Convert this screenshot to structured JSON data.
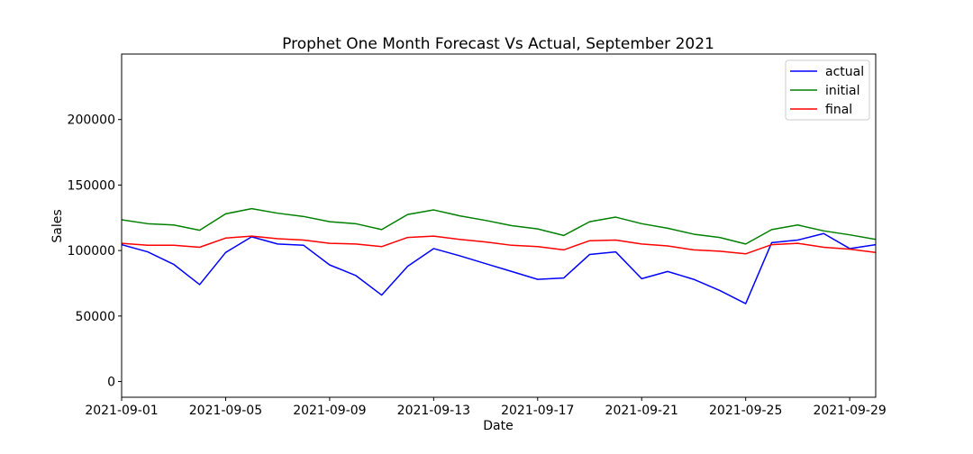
{
  "chart_data": {
    "type": "line",
    "title": "Prophet One Month Forecast Vs Actual, September 2021",
    "xlabel": "Date",
    "ylabel": "Sales",
    "x": [
      "2021-09-01",
      "2021-09-02",
      "2021-09-03",
      "2021-09-04",
      "2021-09-05",
      "2021-09-06",
      "2021-09-07",
      "2021-09-08",
      "2021-09-09",
      "2021-09-10",
      "2021-09-11",
      "2021-09-12",
      "2021-09-13",
      "2021-09-14",
      "2021-09-15",
      "2021-09-16",
      "2021-09-17",
      "2021-09-18",
      "2021-09-19",
      "2021-09-20",
      "2021-09-21",
      "2021-09-22",
      "2021-09-23",
      "2021-09-24",
      "2021-09-25",
      "2021-09-26",
      "2021-09-27",
      "2021-09-28",
      "2021-09-29",
      "2021-09-30"
    ],
    "xlim": [
      "2021-09-01",
      "2021-09-30"
    ],
    "x_ticks": [
      "2021-09-01",
      "2021-09-05",
      "2021-09-09",
      "2021-09-13",
      "2021-09-17",
      "2021-09-21",
      "2021-09-25",
      "2021-09-29"
    ],
    "ylim": [
      -12000,
      250000
    ],
    "y_ticks": [
      0,
      50000,
      100000,
      150000,
      200000
    ],
    "grid": false,
    "legend_position": "top-right",
    "series": [
      {
        "name": "actual",
        "color": "#0000ff",
        "values": [
          104500,
          99000,
          89500,
          74000,
          98500,
          110500,
          105000,
          104000,
          89000,
          81000,
          66000,
          88000,
          101500,
          96000,
          90000,
          84000,
          78000,
          79000,
          97000,
          99000,
          78500,
          84000,
          78000,
          69500,
          59500,
          106000,
          108000,
          113000,
          101500,
          104500
        ]
      },
      {
        "name": "initial",
        "color": "#008000",
        "values": [
          123500,
          120500,
          119500,
          115500,
          128000,
          132000,
          128500,
          126000,
          122000,
          120500,
          116000,
          127500,
          131000,
          126500,
          123000,
          119000,
          116500,
          111500,
          122000,
          125500,
          120500,
          117000,
          112500,
          110000,
          105000,
          116000,
          119500,
          115000,
          112000,
          108500
        ]
      },
      {
        "name": "final",
        "color": "#ff0000",
        "values": [
          105500,
          104000,
          104000,
          102500,
          109500,
          111000,
          109000,
          108000,
          105500,
          105000,
          103000,
          110000,
          111000,
          108500,
          106500,
          104000,
          103000,
          100500,
          107500,
          108000,
          105000,
          103500,
          100500,
          99500,
          97500,
          104500,
          105500,
          102500,
          101000,
          98500
        ]
      }
    ]
  }
}
